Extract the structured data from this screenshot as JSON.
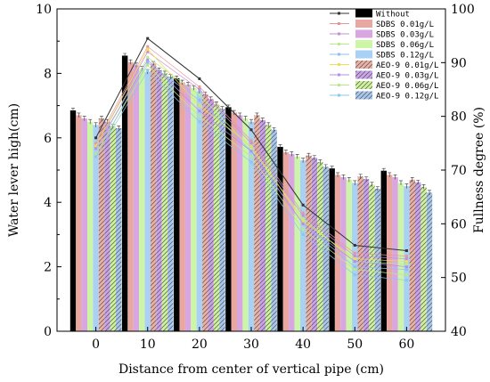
{
  "chart_data": {
    "type": "bar",
    "xlabel": "Distance from center of vertical pipe (cm)",
    "ylabel": "Water lever high(cm)",
    "y2label": "Fullness degree (%)",
    "categories": [
      "0",
      "10",
      "20",
      "30",
      "40",
      "50",
      "60"
    ],
    "ylim": [
      0,
      10
    ],
    "y2lim": [
      40,
      100
    ],
    "yticks": [
      "0",
      "2",
      "4",
      "6",
      "8",
      "10"
    ],
    "y2ticks": [
      "40",
      "50",
      "60",
      "70",
      "80",
      "90",
      "100"
    ],
    "legend_position": "top-right",
    "series": [
      {
        "name": "Without",
        "color": "#000000",
        "hatch": false,
        "values": [
          6.85,
          8.55,
          7.85,
          6.95,
          5.72,
          5.05,
          4.98
        ],
        "line": [
          76.0,
          94.5,
          87.0,
          77.5,
          63.5,
          56.0,
          55.0
        ]
      },
      {
        "name": "SDBS  0.01g/L",
        "color": "#e8a7a1",
        "hatch": false,
        "values": [
          6.7,
          8.35,
          7.72,
          6.78,
          5.55,
          4.85,
          4.85
        ],
        "line": [
          75.0,
          93.0,
          85.5,
          75.5,
          62.0,
          54.5,
          54.0
        ]
      },
      {
        "name": "SDBS  0.03g/L",
        "color": "#d8a6e0",
        "hatch": false,
        "values": [
          6.6,
          8.25,
          7.65,
          6.7,
          5.5,
          4.78,
          4.78
        ],
        "line": [
          74.5,
          92.0,
          85.0,
          75.0,
          61.5,
          54.0,
          53.5
        ]
      },
      {
        "name": "SDBS  0.06g/L",
        "color": "#cdf5a8",
        "hatch": false,
        "values": [
          6.5,
          8.15,
          7.55,
          6.6,
          5.42,
          4.7,
          4.6
        ],
        "line": [
          74.0,
          91.0,
          84.0,
          74.0,
          61.0,
          53.0,
          52.5
        ]
      },
      {
        "name": "SDBS  0.12g/L",
        "color": "#a9d0f5",
        "hatch": false,
        "values": [
          6.4,
          8.05,
          7.45,
          6.5,
          5.3,
          4.6,
          4.5
        ],
        "line": [
          73.0,
          90.0,
          83.0,
          73.5,
          60.0,
          52.0,
          51.5
        ]
      },
      {
        "name": "AEO-9  0.01g/L",
        "color": "#eab0a4",
        "hatch": true,
        "values": [
          6.6,
          8.3,
          7.35,
          6.7,
          5.45,
          4.8,
          4.7
        ],
        "line": [
          74.5,
          92.5,
          82.0,
          74.5,
          60.5,
          53.5,
          53.0
        ]
      },
      {
        "name": "AEO-9  0.03g/L",
        "color": "#caa2eb",
        "hatch": true,
        "values": [
          6.5,
          8.1,
          7.2,
          6.55,
          5.38,
          4.72,
          4.62
        ],
        "line": [
          74.0,
          90.5,
          81.0,
          73.5,
          60.0,
          53.0,
          52.0
        ]
      },
      {
        "name": "AEO-9  0.06g/L",
        "color": "#cdf29a",
        "hatch": true,
        "values": [
          6.35,
          8.0,
          7.05,
          6.4,
          5.25,
          4.55,
          4.48
        ],
        "line": [
          73.0,
          89.5,
          80.0,
          72.5,
          59.0,
          51.5,
          50.5
        ]
      },
      {
        "name": "AEO-9  0.12g/L",
        "color": "#a6c6ee",
        "hatch": true,
        "values": [
          6.3,
          7.9,
          6.9,
          6.25,
          5.1,
          4.42,
          4.3
        ],
        "line": [
          72.5,
          88.5,
          79.0,
          71.5,
          58.0,
          50.5,
          49.5
        ]
      }
    ],
    "line_colors": [
      "#333333",
      "#e5989b",
      "#c58fd8",
      "#b5ee8a",
      "#8ec0ee",
      "#f0dc55",
      "#b48fe8",
      "#b8e88a",
      "#88c8ec"
    ]
  }
}
